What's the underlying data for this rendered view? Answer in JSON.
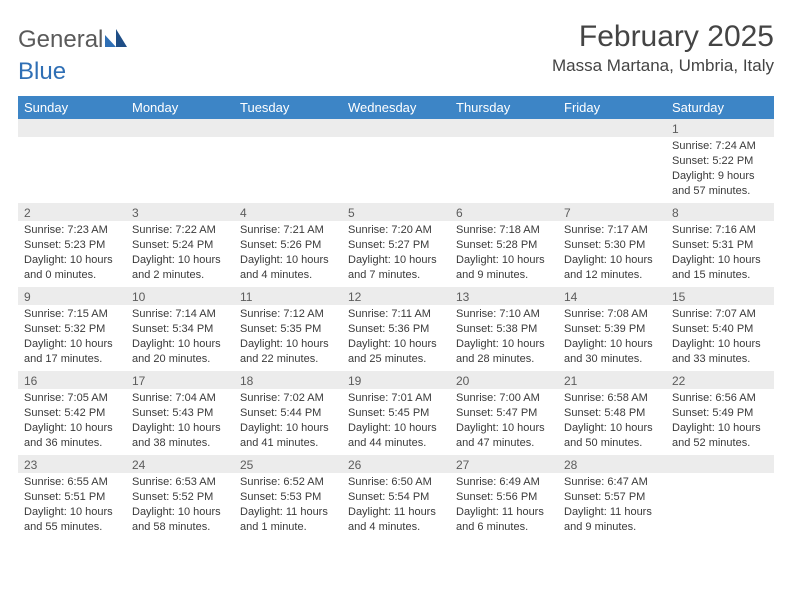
{
  "logo": {
    "text_gray": "General",
    "text_blue": "Blue"
  },
  "title": {
    "month": "February 2025",
    "location": "Massa Martana, Umbria, Italy"
  },
  "styling": {
    "header_bg": "#3d85c6",
    "header_text": "#ffffff",
    "band_bg": "#ececec",
    "band_text": "#5c5c5c",
    "body_text": "#3a3a3a",
    "page_bg": "#ffffff",
    "title_color": "#444444",
    "logo_gray": "#5a5a5a",
    "logo_blue": "#2f6fb5",
    "font_size_title": 30,
    "font_size_location": 17,
    "font_size_header": 13,
    "font_size_daynum": 12,
    "font_size_cell": 11,
    "columns": 7,
    "rows": 5
  },
  "weekdays": [
    "Sunday",
    "Monday",
    "Tuesday",
    "Wednesday",
    "Thursday",
    "Friday",
    "Saturday"
  ],
  "weeks": [
    [
      {
        "n": "",
        "sr": "",
        "ss": "",
        "dl": ""
      },
      {
        "n": "",
        "sr": "",
        "ss": "",
        "dl": ""
      },
      {
        "n": "",
        "sr": "",
        "ss": "",
        "dl": ""
      },
      {
        "n": "",
        "sr": "",
        "ss": "",
        "dl": ""
      },
      {
        "n": "",
        "sr": "",
        "ss": "",
        "dl": ""
      },
      {
        "n": "",
        "sr": "",
        "ss": "",
        "dl": ""
      },
      {
        "n": "1",
        "sr": "Sunrise: 7:24 AM",
        "ss": "Sunset: 5:22 PM",
        "dl": "Daylight: 9 hours and 57 minutes."
      }
    ],
    [
      {
        "n": "2",
        "sr": "Sunrise: 7:23 AM",
        "ss": "Sunset: 5:23 PM",
        "dl": "Daylight: 10 hours and 0 minutes."
      },
      {
        "n": "3",
        "sr": "Sunrise: 7:22 AM",
        "ss": "Sunset: 5:24 PM",
        "dl": "Daylight: 10 hours and 2 minutes."
      },
      {
        "n": "4",
        "sr": "Sunrise: 7:21 AM",
        "ss": "Sunset: 5:26 PM",
        "dl": "Daylight: 10 hours and 4 minutes."
      },
      {
        "n": "5",
        "sr": "Sunrise: 7:20 AM",
        "ss": "Sunset: 5:27 PM",
        "dl": "Daylight: 10 hours and 7 minutes."
      },
      {
        "n": "6",
        "sr": "Sunrise: 7:18 AM",
        "ss": "Sunset: 5:28 PM",
        "dl": "Daylight: 10 hours and 9 minutes."
      },
      {
        "n": "7",
        "sr": "Sunrise: 7:17 AM",
        "ss": "Sunset: 5:30 PM",
        "dl": "Daylight: 10 hours and 12 minutes."
      },
      {
        "n": "8",
        "sr": "Sunrise: 7:16 AM",
        "ss": "Sunset: 5:31 PM",
        "dl": "Daylight: 10 hours and 15 minutes."
      }
    ],
    [
      {
        "n": "9",
        "sr": "Sunrise: 7:15 AM",
        "ss": "Sunset: 5:32 PM",
        "dl": "Daylight: 10 hours and 17 minutes."
      },
      {
        "n": "10",
        "sr": "Sunrise: 7:14 AM",
        "ss": "Sunset: 5:34 PM",
        "dl": "Daylight: 10 hours and 20 minutes."
      },
      {
        "n": "11",
        "sr": "Sunrise: 7:12 AM",
        "ss": "Sunset: 5:35 PM",
        "dl": "Daylight: 10 hours and 22 minutes."
      },
      {
        "n": "12",
        "sr": "Sunrise: 7:11 AM",
        "ss": "Sunset: 5:36 PM",
        "dl": "Daylight: 10 hours and 25 minutes."
      },
      {
        "n": "13",
        "sr": "Sunrise: 7:10 AM",
        "ss": "Sunset: 5:38 PM",
        "dl": "Daylight: 10 hours and 28 minutes."
      },
      {
        "n": "14",
        "sr": "Sunrise: 7:08 AM",
        "ss": "Sunset: 5:39 PM",
        "dl": "Daylight: 10 hours and 30 minutes."
      },
      {
        "n": "15",
        "sr": "Sunrise: 7:07 AM",
        "ss": "Sunset: 5:40 PM",
        "dl": "Daylight: 10 hours and 33 minutes."
      }
    ],
    [
      {
        "n": "16",
        "sr": "Sunrise: 7:05 AM",
        "ss": "Sunset: 5:42 PM",
        "dl": "Daylight: 10 hours and 36 minutes."
      },
      {
        "n": "17",
        "sr": "Sunrise: 7:04 AM",
        "ss": "Sunset: 5:43 PM",
        "dl": "Daylight: 10 hours and 38 minutes."
      },
      {
        "n": "18",
        "sr": "Sunrise: 7:02 AM",
        "ss": "Sunset: 5:44 PM",
        "dl": "Daylight: 10 hours and 41 minutes."
      },
      {
        "n": "19",
        "sr": "Sunrise: 7:01 AM",
        "ss": "Sunset: 5:45 PM",
        "dl": "Daylight: 10 hours and 44 minutes."
      },
      {
        "n": "20",
        "sr": "Sunrise: 7:00 AM",
        "ss": "Sunset: 5:47 PM",
        "dl": "Daylight: 10 hours and 47 minutes."
      },
      {
        "n": "21",
        "sr": "Sunrise: 6:58 AM",
        "ss": "Sunset: 5:48 PM",
        "dl": "Daylight: 10 hours and 50 minutes."
      },
      {
        "n": "22",
        "sr": "Sunrise: 6:56 AM",
        "ss": "Sunset: 5:49 PM",
        "dl": "Daylight: 10 hours and 52 minutes."
      }
    ],
    [
      {
        "n": "23",
        "sr": "Sunrise: 6:55 AM",
        "ss": "Sunset: 5:51 PM",
        "dl": "Daylight: 10 hours and 55 minutes."
      },
      {
        "n": "24",
        "sr": "Sunrise: 6:53 AM",
        "ss": "Sunset: 5:52 PM",
        "dl": "Daylight: 10 hours and 58 minutes."
      },
      {
        "n": "25",
        "sr": "Sunrise: 6:52 AM",
        "ss": "Sunset: 5:53 PM",
        "dl": "Daylight: 11 hours and 1 minute."
      },
      {
        "n": "26",
        "sr": "Sunrise: 6:50 AM",
        "ss": "Sunset: 5:54 PM",
        "dl": "Daylight: 11 hours and 4 minutes."
      },
      {
        "n": "27",
        "sr": "Sunrise: 6:49 AM",
        "ss": "Sunset: 5:56 PM",
        "dl": "Daylight: 11 hours and 6 minutes."
      },
      {
        "n": "28",
        "sr": "Sunrise: 6:47 AM",
        "ss": "Sunset: 5:57 PM",
        "dl": "Daylight: 11 hours and 9 minutes."
      },
      {
        "n": "",
        "sr": "",
        "ss": "",
        "dl": ""
      }
    ]
  ]
}
